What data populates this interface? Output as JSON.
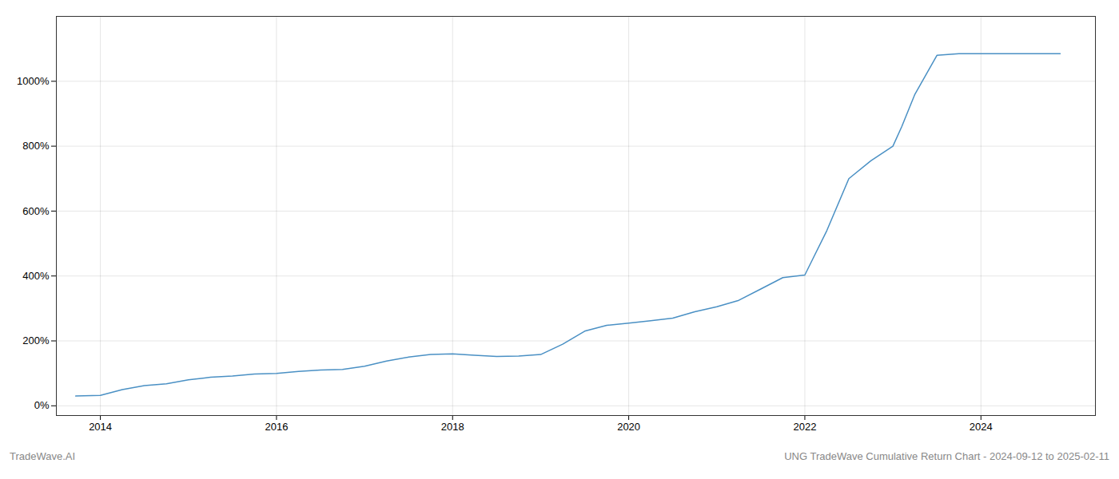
{
  "chart_data": {
    "type": "line",
    "title": "UNG TradeWave Cumulative Return Chart - 2024-09-12 to 2025-02-11",
    "annotations": [
      "TradeWave.AI"
    ],
    "color": "#4a90c4",
    "grid": true,
    "x": [
      2013.72,
      2014.0,
      2014.25,
      2014.5,
      2014.75,
      2015.0,
      2015.25,
      2015.5,
      2015.75,
      2016.0,
      2016.25,
      2016.5,
      2016.75,
      2017.0,
      2017.25,
      2017.5,
      2017.75,
      2018.0,
      2018.25,
      2018.5,
      2018.75,
      2019.0,
      2019.25,
      2019.5,
      2019.75,
      2020.0,
      2020.25,
      2020.5,
      2020.75,
      2021.0,
      2021.25,
      2021.5,
      2021.75,
      2022.0,
      2022.25,
      2022.5,
      2022.75,
      2023.0,
      2023.1,
      2023.25,
      2023.5,
      2023.75,
      2024.0,
      2024.25,
      2024.5,
      2024.75,
      2024.9
    ],
    "values": [
      30,
      32,
      50,
      62,
      68,
      80,
      88,
      92,
      98,
      100,
      106,
      110,
      112,
      122,
      138,
      150,
      158,
      160,
      156,
      152,
      153,
      158,
      190,
      230,
      248,
      255,
      262,
      270,
      290,
      305,
      325,
      360,
      395,
      403,
      540,
      700,
      755,
      800,
      860,
      960,
      1080,
      1085,
      1085,
      1085,
      1085,
      1085,
      1085
    ],
    "xlim": [
      2013.5,
      2025.3
    ],
    "ylim": [
      -30,
      1200
    ],
    "xticks": [
      2014,
      2016,
      2018,
      2020,
      2022,
      2024
    ],
    "yticks": [
      {
        "value": 0,
        "label": "0%"
      },
      {
        "value": 200,
        "label": "200%"
      },
      {
        "value": 400,
        "label": "400%"
      },
      {
        "value": 600,
        "label": "600%"
      },
      {
        "value": 800,
        "label": "800%"
      },
      {
        "value": 1000,
        "label": "1000%"
      }
    ]
  }
}
